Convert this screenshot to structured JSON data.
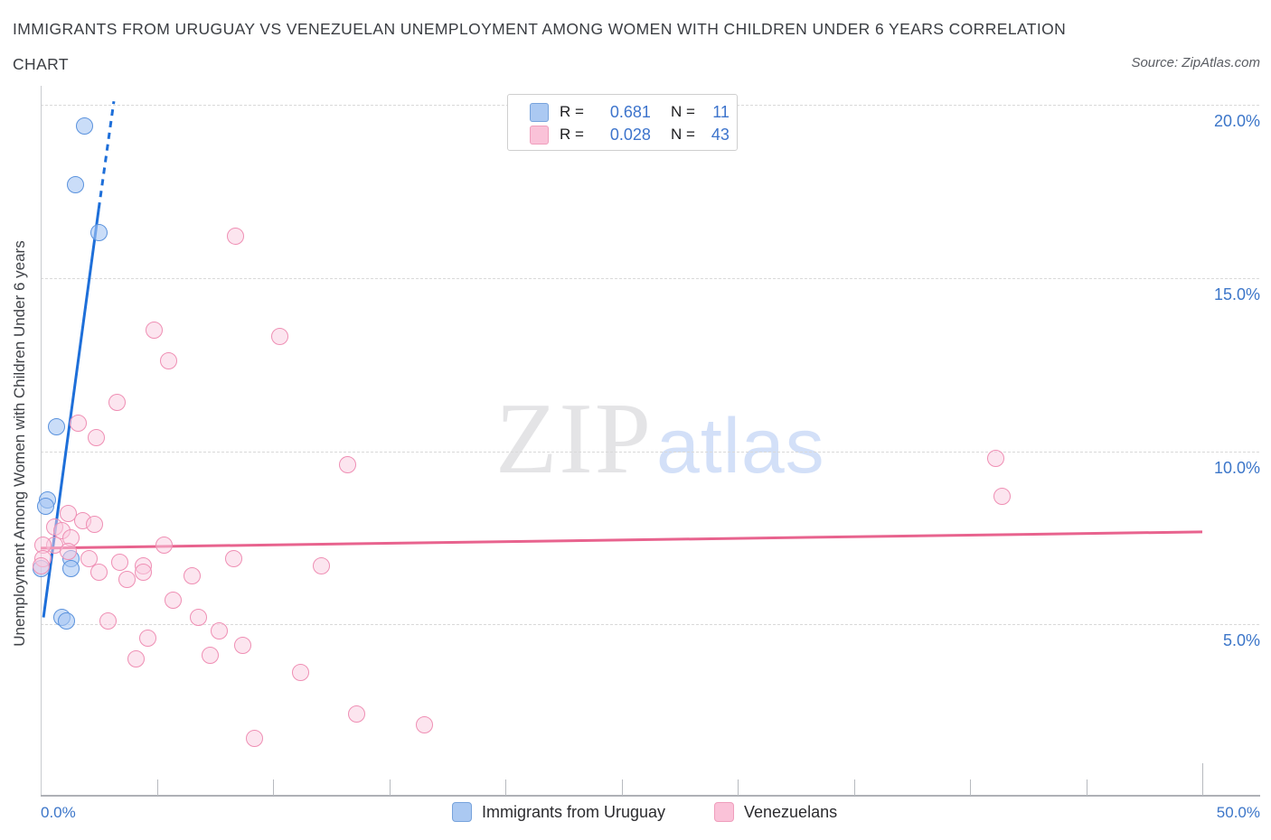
{
  "header": {
    "title_line1": "IMMIGRANTS FROM URUGUAY VS VENEZUELAN UNEMPLOYMENT AMONG WOMEN WITH CHILDREN UNDER 6 YEARS CORRELATION",
    "title_line2": "CHART",
    "source": "Source: ZipAtlas.com"
  },
  "watermark": {
    "zip": "ZIP",
    "atlas": "atlas"
  },
  "legend_box": {
    "rows": [
      {
        "series": "uruguay",
        "r_label": "R =",
        "r_value": "0.681",
        "n_label": "N =",
        "n_value": "11"
      },
      {
        "series": "venezuelans",
        "r_label": "R =",
        "r_value": "0.028",
        "n_label": "N =",
        "n_value": "43"
      }
    ]
  },
  "bottom_legend": {
    "items": [
      {
        "label": "Immigrants from Uruguay",
        "color_key": "blue"
      },
      {
        "label": "Venezuelans",
        "color_key": "pink"
      }
    ]
  },
  "colors": {
    "blue_fill": "#A6C7F3",
    "blue_border": "#5A92DD",
    "blue_line": "#1E6FD9",
    "pink_fill": "#FACCDF",
    "pink_border": "#EF8FB4",
    "pink_line": "#E8638E",
    "grid": "#D9D9D9",
    "axis": "#AEB1B6",
    "axis_label_blue": "#3C76C9"
  },
  "chart_data": {
    "type": "scatter",
    "title": "Immigrants from Uruguay vs Venezuelan Unemployment Among Women with Children Under 6 years Correlation Chart",
    "xlabel": "Immigrants from Uruguay",
    "ylabel": "Unemployment Among Women with Children Under 6 years",
    "x_axis": {
      "min": 0,
      "max": 52.4,
      "unit": "%",
      "shown_labels": [
        "0.0%",
        "50.0%"
      ],
      "minor_tick_step": 5,
      "major_tick_at": 50
    },
    "y_axis": {
      "min": 0,
      "max": 20.5,
      "unit": "%",
      "gridlines": [
        {
          "pct": 20,
          "label": "20.0%"
        },
        {
          "pct": 15,
          "label": "15.0%"
        },
        {
          "pct": 10,
          "label": "10.0%"
        },
        {
          "pct": 5,
          "label": "5.0%"
        }
      ]
    },
    "series": [
      {
        "name": "Immigrants from Uruguay",
        "R": 0.681,
        "N": 11,
        "color_key": "blue",
        "points": [
          [
            1.9,
            19.4
          ],
          [
            1.5,
            17.7
          ],
          [
            2.5,
            16.3
          ],
          [
            0.7,
            10.7
          ],
          [
            0.3,
            8.6
          ],
          [
            0.2,
            8.4
          ],
          [
            1.3,
            6.9
          ],
          [
            1.3,
            6.6
          ],
          [
            0.0,
            6.6
          ],
          [
            0.9,
            5.2
          ],
          [
            1.1,
            5.1
          ]
        ]
      },
      {
        "name": "Venezuelans",
        "R": 0.028,
        "N": 43,
        "color_key": "pink",
        "points": [
          [
            8.4,
            16.2
          ],
          [
            4.9,
            13.5
          ],
          [
            10.3,
            13.3
          ],
          [
            5.5,
            12.6
          ],
          [
            3.3,
            11.4
          ],
          [
            1.6,
            10.8
          ],
          [
            2.4,
            10.4
          ],
          [
            13.2,
            9.6
          ],
          [
            41.1,
            9.8
          ],
          [
            41.4,
            8.7
          ],
          [
            1.2,
            8.2
          ],
          [
            1.8,
            8.0
          ],
          [
            2.3,
            7.9
          ],
          [
            0.6,
            7.8
          ],
          [
            0.9,
            7.7
          ],
          [
            1.3,
            7.5
          ],
          [
            0.6,
            7.3
          ],
          [
            0.1,
            7.3
          ],
          [
            1.2,
            7.1
          ],
          [
            0.1,
            6.9
          ],
          [
            0.0,
            6.7
          ],
          [
            2.1,
            6.9
          ],
          [
            2.5,
            6.5
          ],
          [
            3.4,
            6.8
          ],
          [
            4.4,
            6.7
          ],
          [
            4.4,
            6.5
          ],
          [
            3.7,
            6.3
          ],
          [
            5.3,
            7.3
          ],
          [
            6.5,
            6.4
          ],
          [
            5.7,
            5.7
          ],
          [
            2.9,
            5.1
          ],
          [
            6.8,
            5.2
          ],
          [
            4.6,
            4.6
          ],
          [
            4.1,
            4.0
          ],
          [
            8.3,
            6.9
          ],
          [
            12.1,
            6.7
          ],
          [
            7.7,
            4.8
          ],
          [
            8.7,
            4.4
          ],
          [
            7.3,
            4.1
          ],
          [
            11.2,
            3.6
          ],
          [
            13.6,
            2.4
          ],
          [
            16.5,
            2.1
          ],
          [
            9.2,
            1.7
          ]
        ]
      }
    ],
    "trend_lines": [
      {
        "series": "Immigrants from Uruguay",
        "color_key": "blue",
        "solid": [
          [
            0.12,
            5.2
          ],
          [
            2.5,
            17.0
          ]
        ],
        "dashed": [
          [
            2.5,
            17.0
          ],
          [
            3.15,
            20.1
          ]
        ]
      },
      {
        "series": "Venezuelans",
        "color_key": "pink",
        "solid": [
          [
            0.0,
            7.2
          ],
          [
            50.0,
            7.67
          ]
        ]
      }
    ],
    "legend_position": "bottom",
    "grid": "horizontal-dashed"
  }
}
